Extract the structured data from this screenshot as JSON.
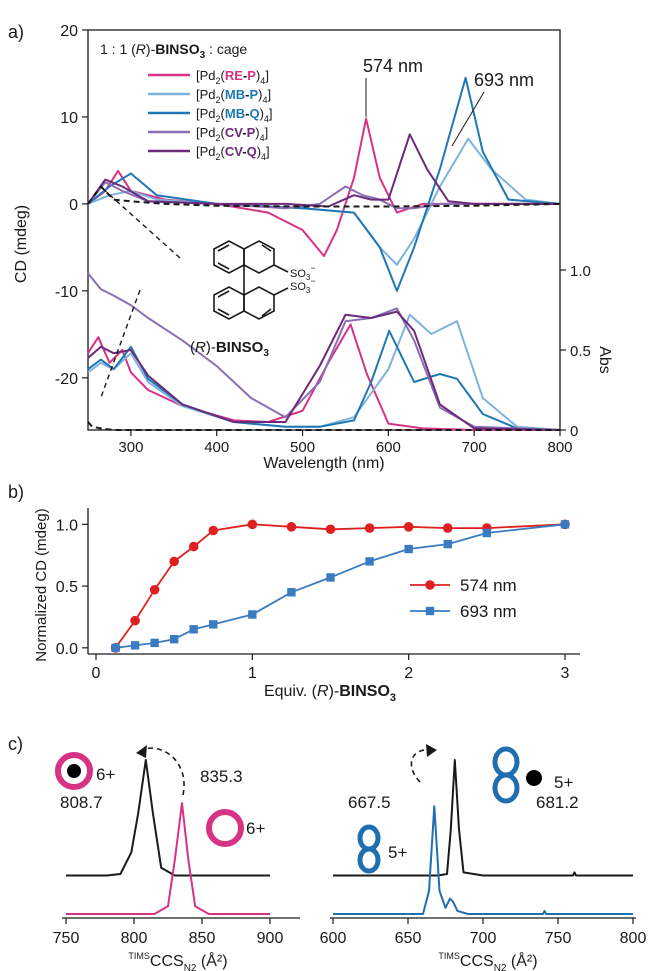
{
  "colors": {
    "re_p": "#d63384",
    "mb_p": "#7fb3dc",
    "mb_q": "#1f78b4",
    "cv_p": "#8a6fb5",
    "cv_q": "#6b2a7a",
    "binso3": "#1a1a1a",
    "series_574": "#e02020",
    "series_693": "#3a7cc1",
    "ring_pink": "#d63384",
    "figure8_blue": "#1f6fb0"
  },
  "chart_data": [
    {
      "panel": "a)",
      "type": "line",
      "inset_label": "1 : 1 (R)-BINSO3 : cage",
      "xlabel": "Wavelength (nm)",
      "ylabel_left": "CD (mdeg)",
      "ylabel_right": "Abs",
      "xlim": [
        250,
        800
      ],
      "ylim_cd": [
        -26,
        20
      ],
      "ylim_abs": [
        0,
        1.3
      ],
      "x_ticks": [
        "300",
        "400",
        "500",
        "600",
        "700",
        "800"
      ],
      "y_ticks_cd": [
        "20",
        "10",
        "0",
        "-10",
        "-20"
      ],
      "y_ticks_abs": [
        "1.0",
        "0.5",
        "0"
      ],
      "annotations": [
        "574 nm",
        "693 nm"
      ],
      "molecule_label": "(R)-BINSO3",
      "legend": [
        {
          "pre": "[Pd",
          "sub": "2",
          "open": "(",
          "a": "RE",
          "sep": "-",
          "b": "P",
          "close": ")",
          "sub2": "4",
          "end": "]"
        },
        {
          "pre": "[Pd",
          "sub": "2",
          "open": "(",
          "a": "MB",
          "sep": "-",
          "b": "P",
          "close": ")",
          "sub2": "4",
          "end": "]"
        },
        {
          "pre": "[Pd",
          "sub": "2",
          "open": "(",
          "a": "MB",
          "sep": "-",
          "b": "Q",
          "close": ")",
          "sub2": "4",
          "end": "]"
        },
        {
          "pre": "[Pd",
          "sub": "2",
          "open": "(",
          "a": "CV",
          "sep": "-",
          "b": "P",
          "close": ")",
          "sub2": "4",
          "end": "]"
        },
        {
          "pre": "[Pd",
          "sub": "2",
          "open": "(",
          "a": "CV",
          "sep": "-",
          "b": "Q",
          "close": ")",
          "sub2": "4",
          "end": "]"
        }
      ],
      "cd_series": [
        {
          "key": "re_p",
          "x": [
            250,
            270,
            285,
            300,
            340,
            400,
            460,
            500,
            525,
            540,
            560,
            574,
            590,
            610,
            640,
            700,
            800
          ],
          "y": [
            0,
            1.5,
            3.8,
            1.5,
            0.5,
            0,
            -1,
            -3,
            -6,
            -3,
            3,
            9.8,
            3,
            -1,
            0,
            0,
            0
          ]
        },
        {
          "key": "mb_p",
          "x": [
            250,
            275,
            300,
            330,
            400,
            500,
            560,
            590,
            610,
            630,
            660,
            693,
            720,
            760,
            800
          ],
          "y": [
            0,
            1,
            1.5,
            0.5,
            0,
            -0.5,
            -1,
            -5,
            -7,
            -4,
            2,
            7.5,
            4,
            0.5,
            0
          ]
        },
        {
          "key": "mb_q",
          "x": [
            250,
            275,
            300,
            330,
            400,
            500,
            560,
            590,
            610,
            630,
            660,
            690,
            710,
            740,
            800
          ],
          "y": [
            0,
            2,
            3.5,
            1,
            0,
            -0.5,
            -1,
            -5,
            -10,
            -5,
            4,
            14.5,
            6,
            0.5,
            0
          ]
        },
        {
          "key": "cv_p",
          "x": [
            250,
            270,
            290,
            320,
            400,
            480,
            520,
            550,
            570,
            590,
            610,
            630,
            660,
            700,
            800
          ],
          "y": [
            0,
            2.5,
            1.5,
            0.3,
            0,
            -0.5,
            0,
            2,
            1,
            0.5,
            -0.5,
            -0.5,
            0,
            0,
            0
          ]
        },
        {
          "key": "cv_q",
          "x": [
            250,
            270,
            290,
            320,
            400,
            480,
            530,
            560,
            580,
            600,
            625,
            645,
            670,
            700,
            800
          ],
          "y": [
            0,
            2.8,
            2,
            0.3,
            0,
            0,
            -0.3,
            1,
            0.5,
            0.5,
            8,
            4,
            0.3,
            0,
            0
          ]
        },
        {
          "key": "binso3",
          "x": [
            250,
            265,
            280,
            300,
            340,
            400,
            500,
            600,
            700,
            800
          ],
          "y": [
            0,
            2,
            0.5,
            0.3,
            0,
            -0.2,
            -0.3,
            -0.3,
            -0.2,
            0
          ]
        }
      ],
      "abs_series": [
        {
          "key": "re_p",
          "x": [
            250,
            262,
            275,
            290,
            300,
            320,
            360,
            420,
            460,
            500,
            530,
            556,
            575,
            600,
            640,
            700,
            800
          ],
          "y": [
            0.48,
            0.58,
            0.42,
            0.5,
            0.36,
            0.25,
            0.15,
            0.06,
            0.05,
            0.12,
            0.42,
            0.66,
            0.35,
            0.04,
            0.01,
            0,
            0
          ]
        },
        {
          "key": "mb_p",
          "x": [
            250,
            265,
            280,
            300,
            320,
            360,
            420,
            480,
            520,
            560,
            600,
            625,
            650,
            680,
            710,
            750,
            800
          ],
          "y": [
            0.36,
            0.42,
            0.38,
            0.48,
            0.3,
            0.15,
            0.05,
            0.02,
            0.02,
            0.08,
            0.38,
            0.72,
            0.6,
            0.68,
            0.2,
            0.02,
            0
          ]
        },
        {
          "key": "mb_q",
          "x": [
            250,
            265,
            280,
            300,
            320,
            360,
            420,
            480,
            520,
            560,
            580,
            601,
            630,
            660,
            680,
            710,
            750,
            800
          ],
          "y": [
            0.38,
            0.44,
            0.38,
            0.52,
            0.32,
            0.16,
            0.05,
            0.02,
            0.02,
            0.06,
            0.3,
            0.62,
            0.3,
            0.35,
            0.32,
            0.1,
            0.01,
            0
          ]
        },
        {
          "key": "cv_p",
          "x": [
            250,
            265,
            280,
            300,
            320,
            360,
            400,
            440,
            480,
            520,
            550,
            580,
            610,
            630,
            660,
            700,
            800
          ],
          "y": [
            0.98,
            0.88,
            0.84,
            0.78,
            0.7,
            0.56,
            0.4,
            0.2,
            0.08,
            0.3,
            0.68,
            0.7,
            0.76,
            0.56,
            0.14,
            0.02,
            0
          ]
        },
        {
          "key": "cv_q",
          "x": [
            250,
            265,
            280,
            300,
            320,
            360,
            420,
            480,
            520,
            550,
            580,
            610,
            630,
            660,
            700,
            800
          ],
          "y": [
            0.45,
            0.52,
            0.48,
            0.5,
            0.34,
            0.16,
            0.05,
            0.05,
            0.4,
            0.72,
            0.7,
            0.74,
            0.62,
            0.16,
            0.01,
            0
          ]
        },
        {
          "key": "binso3",
          "x": [
            250,
            255,
            265,
            280,
            300,
            350,
            400,
            500,
            600,
            800
          ],
          "y": [
            0.05,
            0.02,
            0.01,
            0.0,
            0.0,
            0.0,
            0.0,
            0.0,
            0.0,
            0.0
          ]
        }
      ]
    },
    {
      "panel": "b)",
      "type": "line",
      "xlabel_pre": "Equiv. (",
      "xlabel_r": "R",
      "xlabel_post": ")-",
      "xlabel_bold": "BINSO",
      "xlabel_sub": "3",
      "ylabel": "Normalized CD (mdeg)",
      "xlim": [
        0,
        3.1
      ],
      "ylim": [
        -0.05,
        1.1
      ],
      "x_ticks": [
        "0",
        "1",
        "2",
        "3"
      ],
      "y_ticks": [
        "0.0",
        "0.5",
        "1.0"
      ],
      "series": [
        {
          "name": "574 nm",
          "key": "series_574",
          "marker": "circle",
          "x": [
            0.125,
            0.25,
            0.375,
            0.5,
            0.625,
            0.75,
            1.0,
            1.25,
            1.5,
            1.75,
            2.0,
            2.25,
            2.5,
            3.0
          ],
          "y": [
            0.0,
            0.22,
            0.47,
            0.7,
            0.82,
            0.95,
            1.0,
            0.98,
            0.96,
            0.97,
            0.98,
            0.97,
            0.97,
            1.0
          ]
        },
        {
          "name": "693 nm",
          "key": "series_693",
          "marker": "square",
          "x": [
            0.125,
            0.25,
            0.375,
            0.5,
            0.625,
            0.75,
            1.0,
            1.25,
            1.5,
            1.75,
            2.0,
            2.25,
            2.5,
            3.0
          ],
          "y": [
            0.0,
            0.02,
            0.04,
            0.07,
            0.15,
            0.19,
            0.27,
            0.45,
            0.57,
            0.7,
            0.8,
            0.84,
            0.93,
            1.0
          ]
        }
      ]
    },
    {
      "panel": "c)",
      "type": "line",
      "xlabel_left": {
        "pre": "TIMS",
        "main": "CCS",
        "sub": "N2",
        "unit": " (Å²)"
      },
      "xlabel_right": {
        "pre": "TIMS",
        "main": "CCS",
        "sub": "N2",
        "unit": " (Å²)"
      },
      "left": {
        "xlim": [
          750,
          900
        ],
        "x_ticks": [
          "750",
          "800",
          "850",
          "900"
        ],
        "peaks": [
          {
            "value": "808.7",
            "charge": "6+",
            "key": "binso3"
          },
          {
            "value": "835.3",
            "charge": "6+",
            "key": "ring_pink"
          }
        ],
        "series": [
          {
            "key": "binso3",
            "x": [
              750,
              780,
              790,
              798,
              803,
              808.7,
              814,
              820,
              830,
              900
            ],
            "y": [
              0.25,
              0.25,
              0.26,
              0.4,
              0.65,
              1.0,
              0.65,
              0.3,
              0.25,
              0.25
            ]
          },
          {
            "key": "ring_pink",
            "x": [
              750,
              815,
              825,
              830,
              835.3,
              840,
              845,
              855,
              900
            ],
            "y": [
              0,
              0,
              0.05,
              0.35,
              0.72,
              0.35,
              0.05,
              0,
              0
            ]
          }
        ]
      },
      "right": {
        "xlim": [
          600,
          800
        ],
        "x_ticks": [
          "600",
          "650",
          "700",
          "750",
          "800"
        ],
        "peaks": [
          {
            "value": "667.5",
            "charge": "5+",
            "key": "figure8_blue"
          },
          {
            "value": "681.2",
            "charge": "5+",
            "key": "binso3"
          }
        ],
        "series": [
          {
            "key": "binso3",
            "x": [
              600,
              670,
              676,
              678.5,
              681.2,
              684,
              687,
              700,
              760,
              761,
              762,
              800
            ],
            "y": [
              0.25,
              0.25,
              0.26,
              0.55,
              1.0,
              0.55,
              0.27,
              0.25,
              0.25,
              0.27,
              0.25,
              0.25
            ]
          },
          {
            "key": "figure8_blue",
            "x": [
              600,
              660,
              664,
              667.5,
              671,
              675,
              678,
              680,
              683,
              690,
              740,
              741,
              742,
              800
            ],
            "y": [
              0,
              0,
              0.15,
              0.7,
              0.15,
              0.04,
              0.1,
              0.08,
              0.02,
              0,
              0,
              0.02,
              0,
              0
            ]
          }
        ]
      }
    }
  ]
}
